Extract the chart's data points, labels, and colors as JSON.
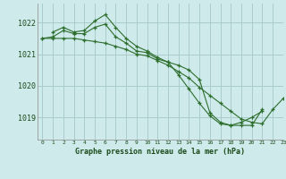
{
  "background_color": "#ceeaea",
  "grid_color": "#aacccc",
  "line_color": "#2d6e2d",
  "marker_color": "#2d6e2d",
  "title": "Graphe pression niveau de la mer (hPa)",
  "xlim": [
    -0.5,
    23
  ],
  "ylim": [
    1018.3,
    1022.6
  ],
  "yticks": [
    1019,
    1020,
    1021,
    1022
  ],
  "xticks": [
    0,
    1,
    2,
    3,
    4,
    5,
    6,
    7,
    8,
    9,
    10,
    11,
    12,
    13,
    14,
    15,
    16,
    17,
    18,
    19,
    20,
    21,
    22,
    23
  ],
  "series": [
    {
      "x": [
        0,
        1,
        2,
        3,
        4,
        5,
        6,
        7,
        8,
        9,
        10,
        11,
        12,
        13,
        14,
        15,
        16,
        17,
        18,
        19,
        20,
        21
      ],
      "y": [
        1021.5,
        1021.55,
        1021.75,
        1021.65,
        1021.65,
        1021.85,
        1021.95,
        1021.55,
        1021.35,
        1021.1,
        1021.05,
        1020.85,
        1020.75,
        1020.65,
        1020.5,
        1020.2,
        1019.15,
        1018.85,
        1018.75,
        1018.75,
        1018.75,
        1019.25
      ]
    },
    {
      "x": [
        0,
        1,
        2,
        3,
        4,
        5,
        6,
        7,
        8,
        9,
        10,
        11,
        12,
        13,
        14,
        15,
        16,
        17,
        18,
        19,
        20,
        21,
        22,
        23
      ],
      "y": [
        1021.5,
        1021.5,
        1021.5,
        1021.5,
        1021.45,
        1021.4,
        1021.35,
        1021.25,
        1021.15,
        1021.0,
        1020.95,
        1020.8,
        1020.65,
        1020.45,
        1020.25,
        1019.95,
        1019.7,
        1019.45,
        1019.2,
        1018.95,
        1018.85,
        1018.8,
        1019.25,
        1019.6
      ]
    },
    {
      "x": [
        1,
        2,
        3,
        4,
        5,
        6,
        7,
        8,
        9,
        10,
        11,
        12,
        13,
        14,
        15,
        16,
        17,
        18,
        19,
        20,
        21
      ],
      "y": [
        1021.7,
        1021.85,
        1021.7,
        1021.75,
        1022.05,
        1022.25,
        1021.85,
        1021.5,
        1021.25,
        1021.1,
        1020.9,
        1020.75,
        1020.35,
        1019.9,
        1019.45,
        1019.05,
        1018.8,
        1018.75,
        1018.85,
        1019.0,
        1019.2
      ]
    }
  ]
}
